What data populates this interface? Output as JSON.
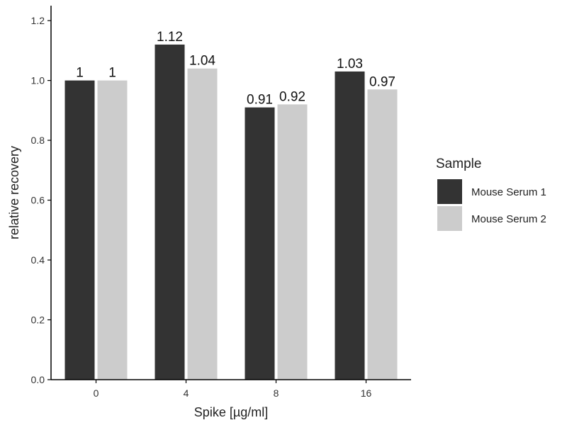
{
  "chart_data": {
    "type": "bar",
    "categories": [
      "0",
      "4",
      "8",
      "16"
    ],
    "series": [
      {
        "name": "Mouse Serum 1",
        "values": [
          1,
          1.12,
          0.91,
          1.03
        ],
        "labels": [
          "1",
          "1.12",
          "0.91",
          "1.03"
        ],
        "color": "#333333"
      },
      {
        "name": "Mouse Serum 2",
        "values": [
          1,
          1.04,
          0.92,
          0.97
        ],
        "labels": [
          "1",
          "1.04",
          "0.92",
          "0.97"
        ],
        "color": "#cccccc"
      }
    ],
    "title": "",
    "xlabel": "Spike [µg/ml]",
    "ylabel": "relative recovery",
    "ylim": [
      0,
      1.25
    ],
    "yticks": [
      0,
      0.2,
      0.4,
      0.6,
      0.8,
      1.0,
      1.2
    ],
    "ytick_labels": [
      "0.0",
      "0.2",
      "0.4",
      "0.6",
      "0.8",
      "1.0",
      "1.2"
    ],
    "grid": false,
    "legend": {
      "title": "Sample",
      "placement": "right"
    }
  }
}
